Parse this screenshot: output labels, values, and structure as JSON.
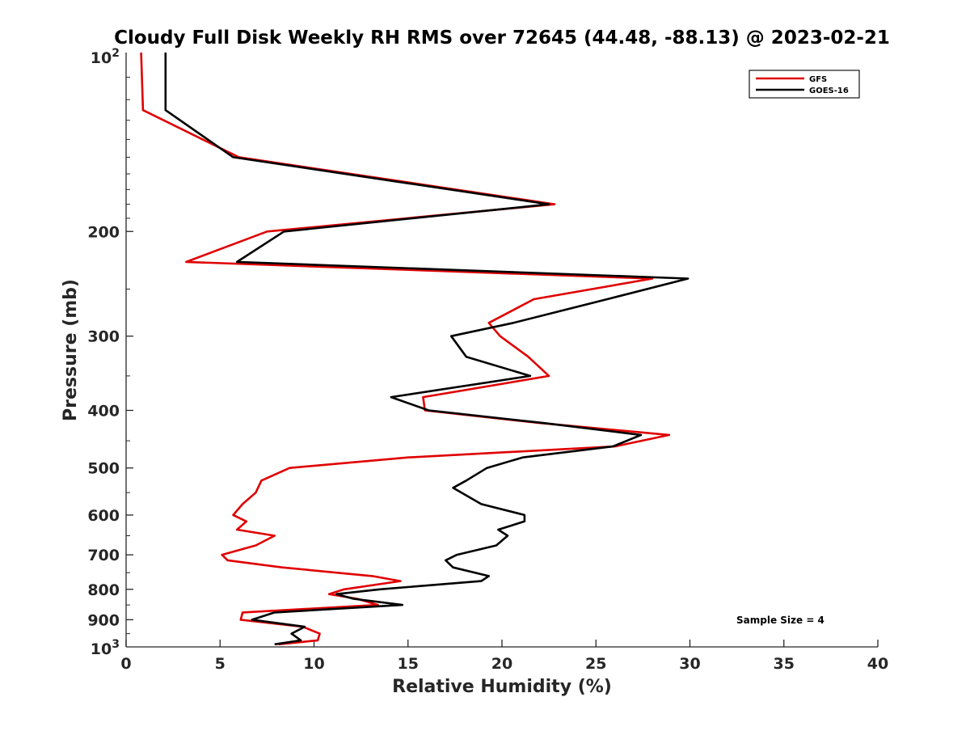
{
  "chart_data": {
    "type": "line",
    "title": "Cloudy Full Disk Weekly RH RMS over 72645 (44.48, -88.13) @ 2023-02-21",
    "xlabel": "Relative Humidity (%)",
    "ylabel": "Pressure (mb)",
    "xlim": [
      0,
      40
    ],
    "ylim": [
      100,
      1000
    ],
    "y_scale": "log",
    "y_reversed": true,
    "grid": false,
    "legend_position": "top-right",
    "x_ticks": [
      0,
      5,
      10,
      15,
      20,
      25,
      30,
      35,
      40
    ],
    "x_tick_labels": [
      "0",
      "5",
      "10",
      "15",
      "20",
      "25",
      "30",
      "35",
      "40"
    ],
    "y_ticks": [
      200,
      300,
      400,
      500,
      600,
      700,
      800,
      900
    ],
    "y_tick_labels": [
      "200",
      "300",
      "400",
      "500",
      "600",
      "700",
      "800",
      "900"
    ],
    "y_top_label": {
      "base": "10",
      "exp": "2"
    },
    "y_bottom_label": {
      "base": "10",
      "exp": "3"
    },
    "annotation": "Sample Size = 4",
    "series": [
      {
        "name": "GFS",
        "color": "#e00000",
        "points": [
          [
            0.8,
            100
          ],
          [
            0.9,
            125
          ],
          [
            6.0,
            150
          ],
          [
            22.8,
            180
          ],
          [
            7.5,
            200
          ],
          [
            3.2,
            225
          ],
          [
            28.0,
            240
          ],
          [
            21.7,
            260
          ],
          [
            19.3,
            285
          ],
          [
            19.9,
            300
          ],
          [
            21.4,
            325
          ],
          [
            22.5,
            350
          ],
          [
            15.8,
            380
          ],
          [
            15.9,
            400
          ],
          [
            22.0,
            420
          ],
          [
            28.9,
            440
          ],
          [
            26.0,
            460
          ],
          [
            15.0,
            480
          ],
          [
            8.7,
            500
          ],
          [
            7.2,
            525
          ],
          [
            6.9,
            550
          ],
          [
            6.2,
            575
          ],
          [
            5.7,
            600
          ],
          [
            6.4,
            615
          ],
          [
            5.9,
            635
          ],
          [
            7.9,
            650
          ],
          [
            6.9,
            675
          ],
          [
            5.1,
            700
          ],
          [
            5.4,
            715
          ],
          [
            8.3,
            735
          ],
          [
            13.1,
            760
          ],
          [
            14.6,
            775
          ],
          [
            11.6,
            800
          ],
          [
            10.8,
            815
          ],
          [
            12.3,
            830
          ],
          [
            13.4,
            850
          ],
          [
            6.2,
            875
          ],
          [
            6.1,
            900
          ],
          [
            9.4,
            925
          ],
          [
            10.3,
            950
          ],
          [
            10.2,
            975
          ],
          [
            8.1,
            990
          ]
        ]
      },
      {
        "name": "GOES-16",
        "color": "#000000",
        "points": [
          [
            2.1,
            100
          ],
          [
            2.1,
            125
          ],
          [
            5.7,
            150
          ],
          [
            22.5,
            180
          ],
          [
            8.4,
            200
          ],
          [
            5.9,
            225
          ],
          [
            29.9,
            240
          ],
          [
            25.6,
            260
          ],
          [
            20.6,
            285
          ],
          [
            17.3,
            300
          ],
          [
            18.1,
            325
          ],
          [
            21.5,
            350
          ],
          [
            14.1,
            380
          ],
          [
            16.1,
            400
          ],
          [
            22.2,
            420
          ],
          [
            27.4,
            440
          ],
          [
            25.9,
            460
          ],
          [
            21.1,
            480
          ],
          [
            19.2,
            500
          ],
          [
            18.1,
            525
          ],
          [
            17.4,
            540
          ],
          [
            18.9,
            575
          ],
          [
            21.2,
            600
          ],
          [
            21.2,
            615
          ],
          [
            19.8,
            635
          ],
          [
            20.3,
            650
          ],
          [
            19.7,
            675
          ],
          [
            17.6,
            700
          ],
          [
            17.0,
            715
          ],
          [
            17.4,
            735
          ],
          [
            19.3,
            760
          ],
          [
            18.9,
            775
          ],
          [
            13.5,
            800
          ],
          [
            11.2,
            815
          ],
          [
            12.1,
            830
          ],
          [
            14.7,
            850
          ],
          [
            7.9,
            875
          ],
          [
            6.7,
            900
          ],
          [
            9.5,
            925
          ],
          [
            8.8,
            950
          ],
          [
            9.3,
            975
          ],
          [
            7.9,
            990
          ]
        ]
      }
    ]
  }
}
